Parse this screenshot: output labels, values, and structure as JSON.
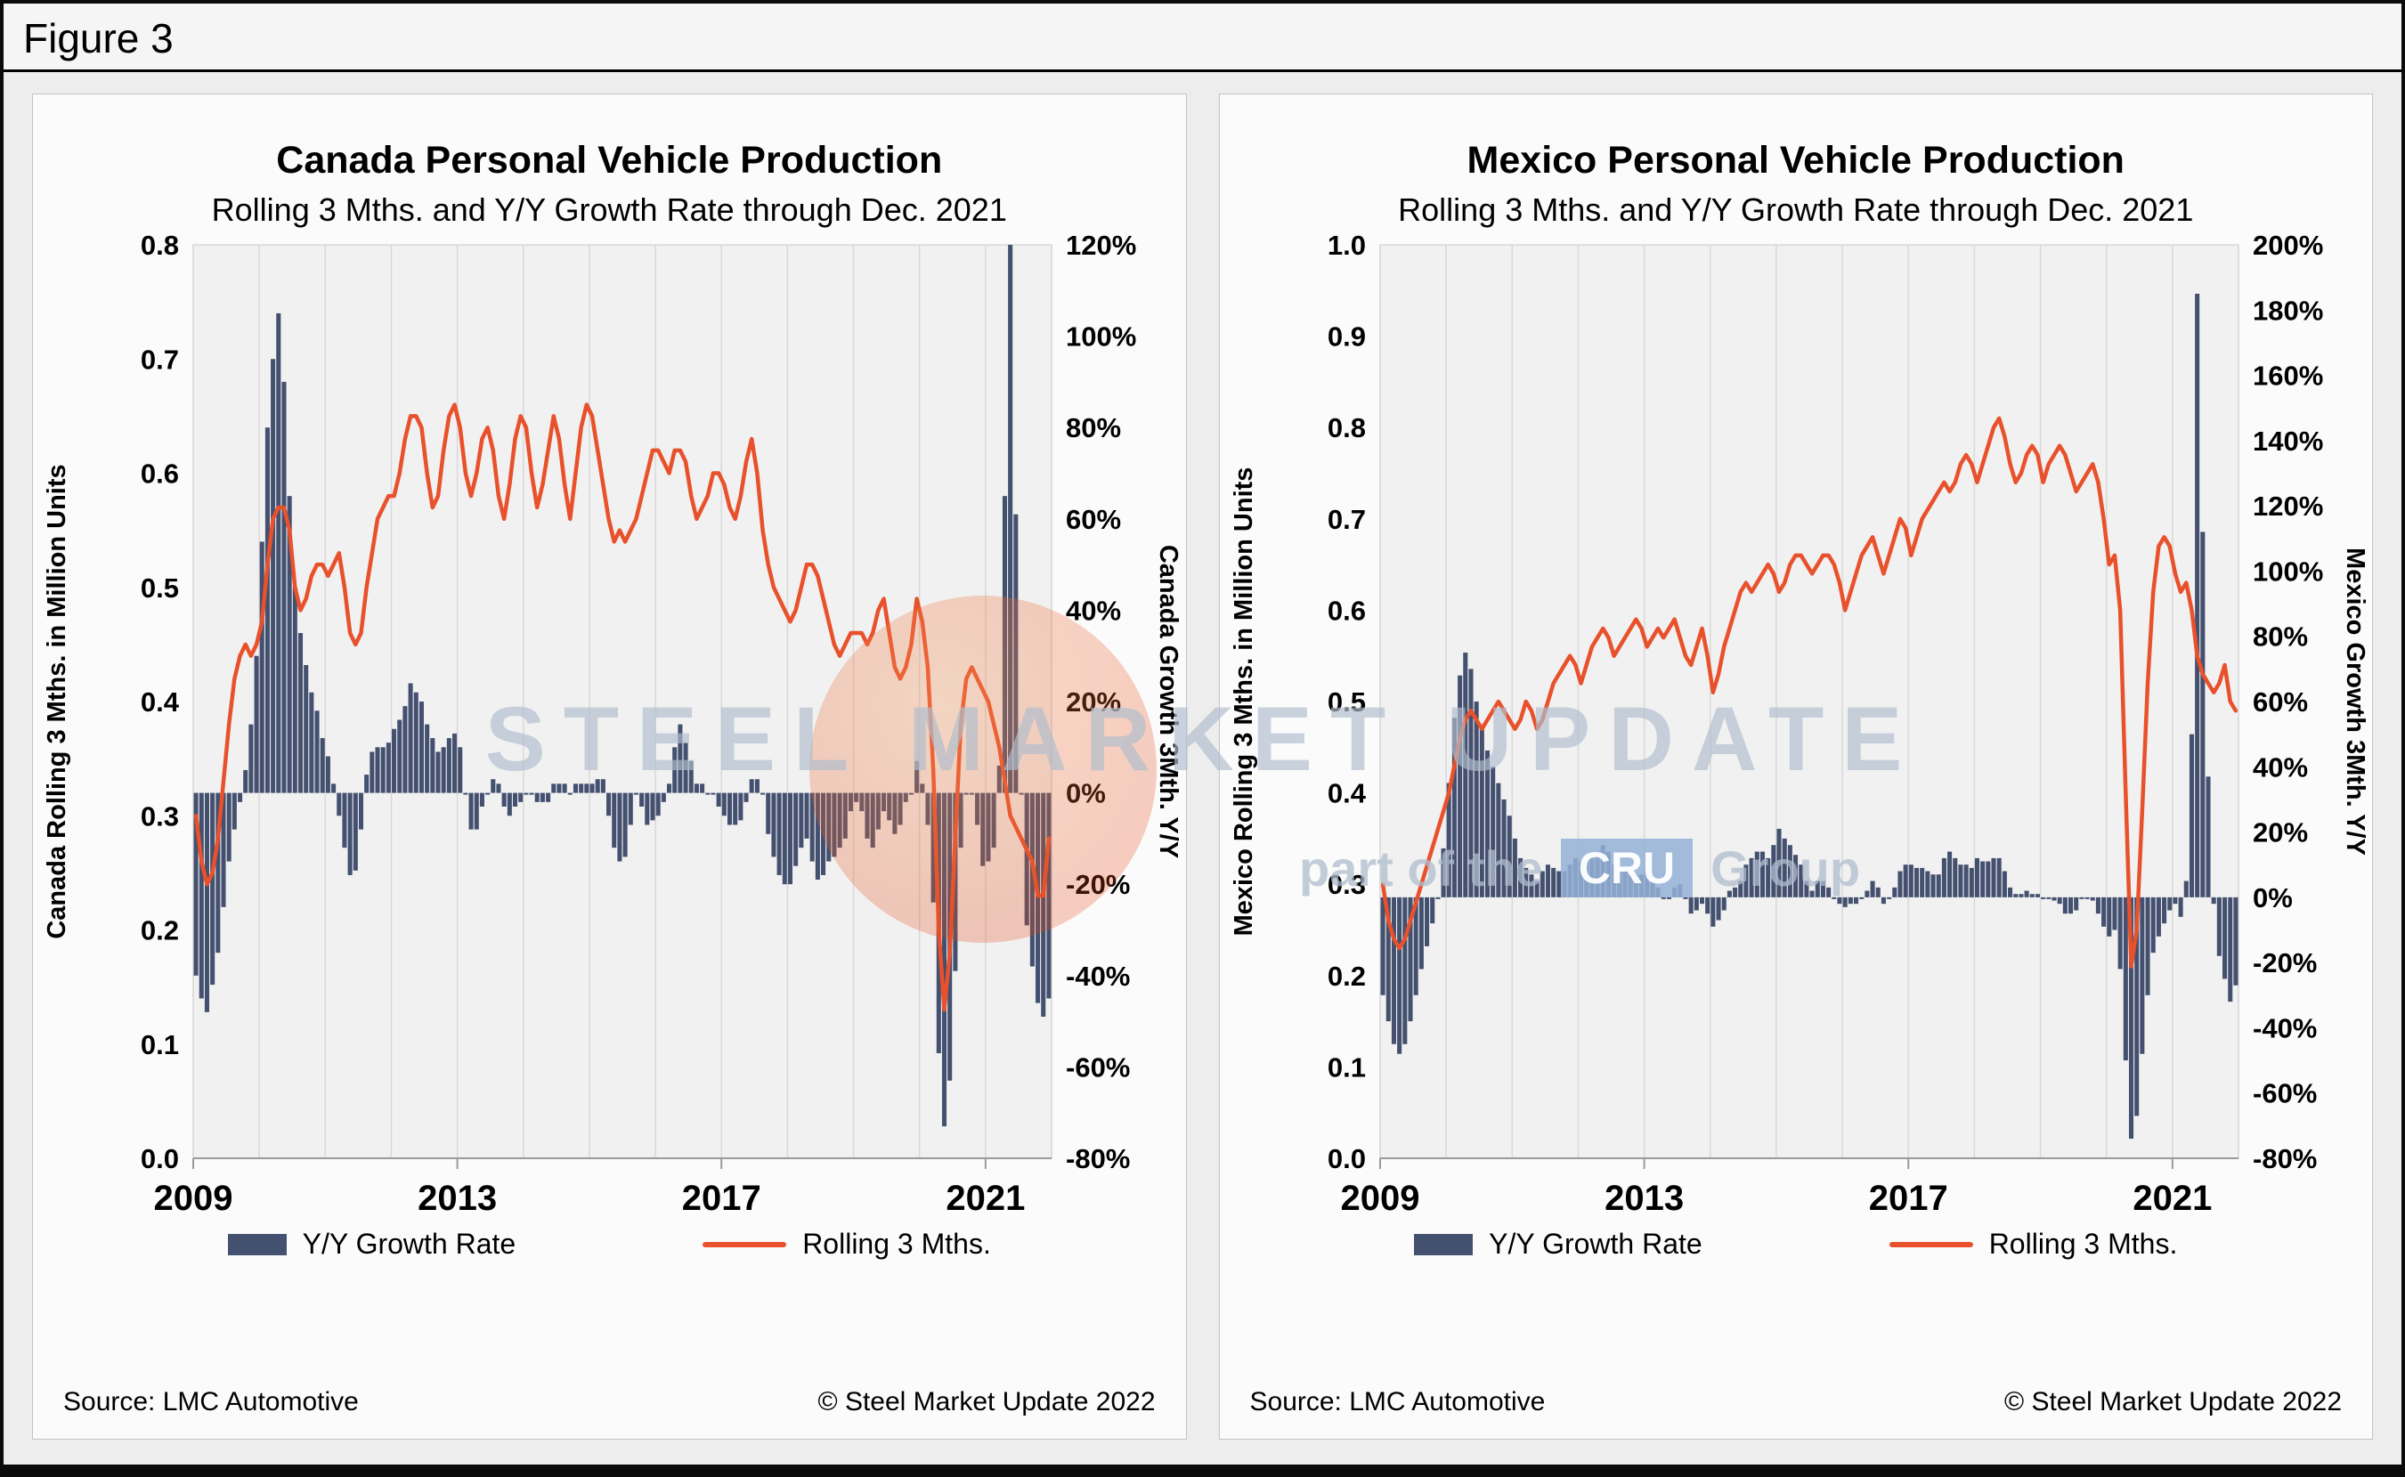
{
  "figure": {
    "label": "Figure 3"
  },
  "watermark": {
    "line1": "STEEL MARKET UPDATE",
    "line2_prefix": "part of the",
    "line2_box": "CRU",
    "line2_suffix": "Group"
  },
  "colors": {
    "bar": "#44506F",
    "line": "#E8512B",
    "plot_bg": "#f1f1f1",
    "gridline": "#d9d9d9",
    "axis": "#9a9a9a"
  },
  "chart_data": [
    {
      "type": "combo_bar_line",
      "title": "Canada Personal Vehicle Production",
      "subtitle": "Rolling 3 Mths. and Y/Y Growth Rate through Dec. 2021",
      "left_axis": {
        "title": "Canada Rolling 3 Mths. in Million Units",
        "min": 0.0,
        "max": 0.8,
        "step": 0.1
      },
      "right_axis": {
        "title": "Canada Growth 3Mth. Y/Y",
        "min": -80,
        "max": 120,
        "step": 20
      },
      "x_axis": {
        "start_year": 2009,
        "end_year": 2021,
        "tick_years": [
          2009,
          2013,
          2017,
          2021
        ],
        "months": 156,
        "grid": "vertical-yearly"
      },
      "source": "Source: LMC Automotive",
      "copyright": "© Steel Market Update 2022",
      "series": [
        {
          "name": "Y/Y Growth Rate",
          "type": "bar",
          "axis": "right",
          "unit": "%",
          "values": [
            -40,
            -45,
            -48,
            -42,
            -35,
            -25,
            -15,
            -8,
            -2,
            5,
            15,
            30,
            55,
            80,
            95,
            105,
            90,
            65,
            45,
            35,
            28,
            22,
            18,
            12,
            8,
            2,
            -5,
            -12,
            -18,
            -17,
            -8,
            4,
            9,
            10,
            10,
            11,
            14,
            16,
            19,
            24,
            22,
            20,
            15,
            12,
            9,
            10,
            12,
            13,
            10,
            0,
            -8,
            -8,
            -3,
            0,
            3,
            2,
            -3,
            -5,
            -3,
            -2,
            0,
            0,
            -2,
            -2,
            -2,
            2,
            2,
            2,
            0,
            2,
            2,
            2,
            2,
            3,
            3,
            -5,
            -12,
            -15,
            -14,
            -7,
            0,
            -3,
            -7,
            -6,
            -5,
            -2,
            2,
            10,
            15,
            11,
            7,
            2,
            2,
            0,
            0,
            -3,
            -5,
            -7,
            -7,
            -6,
            -2,
            3,
            3,
            0,
            -9,
            -14,
            -18,
            -20,
            -20,
            -16,
            -12,
            -10,
            -15,
            -19,
            -18,
            -15,
            -14,
            -12,
            -10,
            -4,
            -2,
            -4,
            -10,
            -12,
            -8,
            -4,
            -6,
            -9,
            -7,
            -2,
            0,
            7,
            2,
            -7,
            -24,
            -57,
            -73,
            -63,
            -39,
            -12,
            0,
            0,
            -7,
            -16,
            -15,
            -12,
            6,
            65,
            120,
            61,
            0,
            -29,
            -38,
            -46,
            -49,
            -45
          ]
        },
        {
          "name": "Rolling 3 Mths.",
          "type": "line",
          "axis": "left",
          "unit": "million units",
          "values": [
            0.3,
            0.26,
            0.24,
            0.25,
            0.28,
            0.33,
            0.38,
            0.42,
            0.44,
            0.45,
            0.44,
            0.45,
            0.47,
            0.52,
            0.56,
            0.57,
            0.57,
            0.55,
            0.5,
            0.48,
            0.49,
            0.51,
            0.52,
            0.52,
            0.51,
            0.52,
            0.53,
            0.5,
            0.46,
            0.45,
            0.46,
            0.5,
            0.53,
            0.56,
            0.57,
            0.58,
            0.58,
            0.6,
            0.63,
            0.65,
            0.65,
            0.64,
            0.6,
            0.57,
            0.58,
            0.62,
            0.65,
            0.66,
            0.64,
            0.6,
            0.58,
            0.6,
            0.63,
            0.64,
            0.62,
            0.58,
            0.56,
            0.59,
            0.63,
            0.65,
            0.64,
            0.6,
            0.57,
            0.59,
            0.62,
            0.65,
            0.63,
            0.59,
            0.56,
            0.6,
            0.64,
            0.66,
            0.65,
            0.62,
            0.59,
            0.56,
            0.54,
            0.55,
            0.54,
            0.55,
            0.56,
            0.58,
            0.6,
            0.62,
            0.62,
            0.61,
            0.6,
            0.62,
            0.62,
            0.61,
            0.58,
            0.56,
            0.57,
            0.58,
            0.6,
            0.6,
            0.59,
            0.57,
            0.56,
            0.58,
            0.61,
            0.63,
            0.6,
            0.55,
            0.52,
            0.5,
            0.49,
            0.48,
            0.47,
            0.48,
            0.5,
            0.52,
            0.52,
            0.51,
            0.49,
            0.47,
            0.45,
            0.44,
            0.45,
            0.46,
            0.46,
            0.46,
            0.45,
            0.46,
            0.48,
            0.49,
            0.46,
            0.43,
            0.42,
            0.43,
            0.45,
            0.49,
            0.47,
            0.43,
            0.34,
            0.2,
            0.13,
            0.18,
            0.28,
            0.38,
            0.42,
            0.43,
            0.42,
            0.41,
            0.4,
            0.38,
            0.36,
            0.33,
            0.3,
            0.29,
            0.28,
            0.27,
            0.26,
            0.23,
            0.23,
            0.28
          ]
        }
      ]
    },
    {
      "type": "combo_bar_line",
      "title": "Mexico Personal Vehicle Production",
      "subtitle": "Rolling 3 Mths. and Y/Y Growth Rate through Dec. 2021",
      "left_axis": {
        "title": "Mexico Rolling 3 Mths. in Million Units",
        "min": 0.0,
        "max": 1.0,
        "step": 0.1
      },
      "right_axis": {
        "title": "Mexico Growth 3Mth. Y/Y",
        "min": -80,
        "max": 200,
        "step": 20
      },
      "x_axis": {
        "start_year": 2009,
        "end_year": 2021,
        "tick_years": [
          2009,
          2013,
          2017,
          2021
        ],
        "months": 156,
        "grid": "vertical-yearly"
      },
      "source": "Source: LMC Automotive",
      "copyright": "© Steel Market Update 2022",
      "series": [
        {
          "name": "Y/Y Growth Rate",
          "type": "bar",
          "axis": "right",
          "unit": "%",
          "values": [
            -30,
            -38,
            -45,
            -48,
            -45,
            -38,
            -30,
            -22,
            -15,
            -8,
            0,
            15,
            35,
            55,
            68,
            75,
            70,
            60,
            52,
            45,
            40,
            35,
            30,
            25,
            18,
            12,
            9,
            7,
            5,
            8,
            10,
            9,
            8,
            8,
            10,
            12,
            11,
            12,
            12,
            14,
            16,
            14,
            10,
            8,
            8,
            7,
            7,
            7,
            8,
            5,
            3,
            0,
            0,
            3,
            4,
            0,
            -5,
            -4,
            -2,
            -5,
            -9,
            -7,
            -4,
            2,
            3,
            5,
            10,
            12,
            14,
            14,
            12,
            16,
            21,
            18,
            16,
            13,
            10,
            5,
            2,
            5,
            5,
            3,
            0,
            -2,
            -3,
            -2,
            -2,
            0,
            2,
            5,
            3,
            -2,
            0,
            3,
            8,
            10,
            10,
            9,
            9,
            8,
            7,
            7,
            12,
            14,
            12,
            10,
            10,
            9,
            12,
            11,
            11,
            12,
            12,
            8,
            3,
            1,
            1,
            2,
            1,
            1,
            0,
            0,
            -1,
            -2,
            -5,
            -5,
            -4,
            0,
            0,
            -1,
            -5,
            -9,
            -12,
            -10,
            -22,
            -50,
            -74,
            -67,
            -48,
            -30,
            -17,
            -12,
            -8,
            -4,
            -2,
            -6,
            5,
            50,
            185,
            112,
            37,
            -2,
            -18,
            -25,
            -32,
            -27
          ]
        },
        {
          "name": "Rolling 3 Mths.",
          "type": "line",
          "axis": "left",
          "unit": "million units",
          "values": [
            0.3,
            0.26,
            0.24,
            0.23,
            0.24,
            0.26,
            0.28,
            0.3,
            0.32,
            0.34,
            0.36,
            0.38,
            0.4,
            0.43,
            0.46,
            0.48,
            0.49,
            0.48,
            0.47,
            0.48,
            0.49,
            0.5,
            0.49,
            0.48,
            0.47,
            0.48,
            0.5,
            0.49,
            0.47,
            0.48,
            0.5,
            0.52,
            0.53,
            0.54,
            0.55,
            0.54,
            0.52,
            0.54,
            0.56,
            0.57,
            0.58,
            0.57,
            0.55,
            0.56,
            0.57,
            0.58,
            0.59,
            0.58,
            0.56,
            0.57,
            0.58,
            0.57,
            0.58,
            0.59,
            0.57,
            0.55,
            0.54,
            0.56,
            0.58,
            0.55,
            0.51,
            0.53,
            0.56,
            0.58,
            0.6,
            0.62,
            0.63,
            0.62,
            0.63,
            0.64,
            0.65,
            0.64,
            0.62,
            0.63,
            0.65,
            0.66,
            0.66,
            0.65,
            0.64,
            0.65,
            0.66,
            0.66,
            0.65,
            0.63,
            0.6,
            0.62,
            0.64,
            0.66,
            0.67,
            0.68,
            0.66,
            0.64,
            0.66,
            0.68,
            0.7,
            0.69,
            0.66,
            0.68,
            0.7,
            0.71,
            0.72,
            0.73,
            0.74,
            0.73,
            0.74,
            0.76,
            0.77,
            0.76,
            0.74,
            0.76,
            0.78,
            0.8,
            0.81,
            0.79,
            0.76,
            0.74,
            0.75,
            0.77,
            0.78,
            0.77,
            0.74,
            0.76,
            0.77,
            0.78,
            0.77,
            0.75,
            0.73,
            0.74,
            0.75,
            0.76,
            0.74,
            0.7,
            0.65,
            0.66,
            0.6,
            0.4,
            0.21,
            0.25,
            0.38,
            0.52,
            0.62,
            0.67,
            0.68,
            0.67,
            0.64,
            0.62,
            0.63,
            0.6,
            0.55,
            0.53,
            0.52,
            0.51,
            0.52,
            0.54,
            0.5,
            0.49
          ]
        }
      ]
    }
  ]
}
